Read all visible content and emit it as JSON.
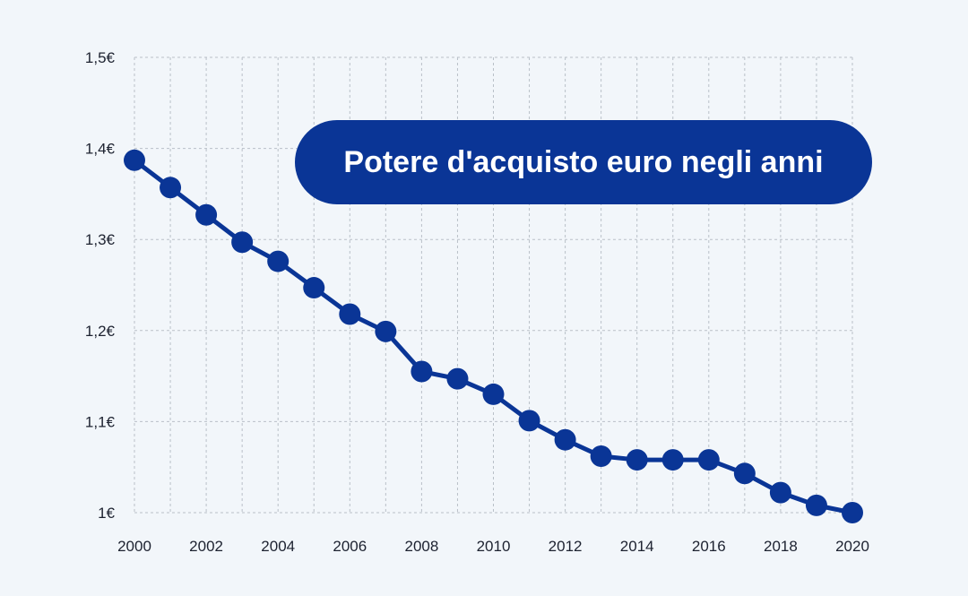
{
  "chart_data": {
    "type": "line",
    "title": "Potere d'acquisto euro negli anni",
    "x": [
      2000,
      2001,
      2002,
      2003,
      2004,
      2005,
      2006,
      2007,
      2008,
      2009,
      2010,
      2011,
      2012,
      2013,
      2014,
      2015,
      2016,
      2017,
      2018,
      2019,
      2020
    ],
    "series": [
      {
        "values": [
          1.387,
          1.357,
          1.327,
          1.297,
          1.276,
          1.247,
          1.218,
          1.199,
          1.155,
          1.147,
          1.13,
          1.101,
          1.08,
          1.062,
          1.058,
          1.058,
          1.058,
          1.043,
          1.022,
          1.008,
          1.0
        ]
      }
    ],
    "ylim": [
      1.0,
      1.5
    ],
    "y_ticks": [
      {
        "value": 1.0,
        "label": "1€"
      },
      {
        "value": 1.1,
        "label": "1,1€"
      },
      {
        "value": 1.2,
        "label": "1,2€"
      },
      {
        "value": 1.3,
        "label": "1,3€"
      },
      {
        "value": 1.4,
        "label": "1,4€"
      },
      {
        "value": 1.5,
        "label": "1,5€"
      }
    ],
    "x_tick_labels": [
      "2000",
      "2002",
      "2004",
      "2006",
      "2008",
      "2010",
      "2012",
      "2014",
      "2016",
      "2018",
      "2020"
    ],
    "grid": true,
    "line_color": "#0a3596",
    "background": "#f2f6fa"
  }
}
